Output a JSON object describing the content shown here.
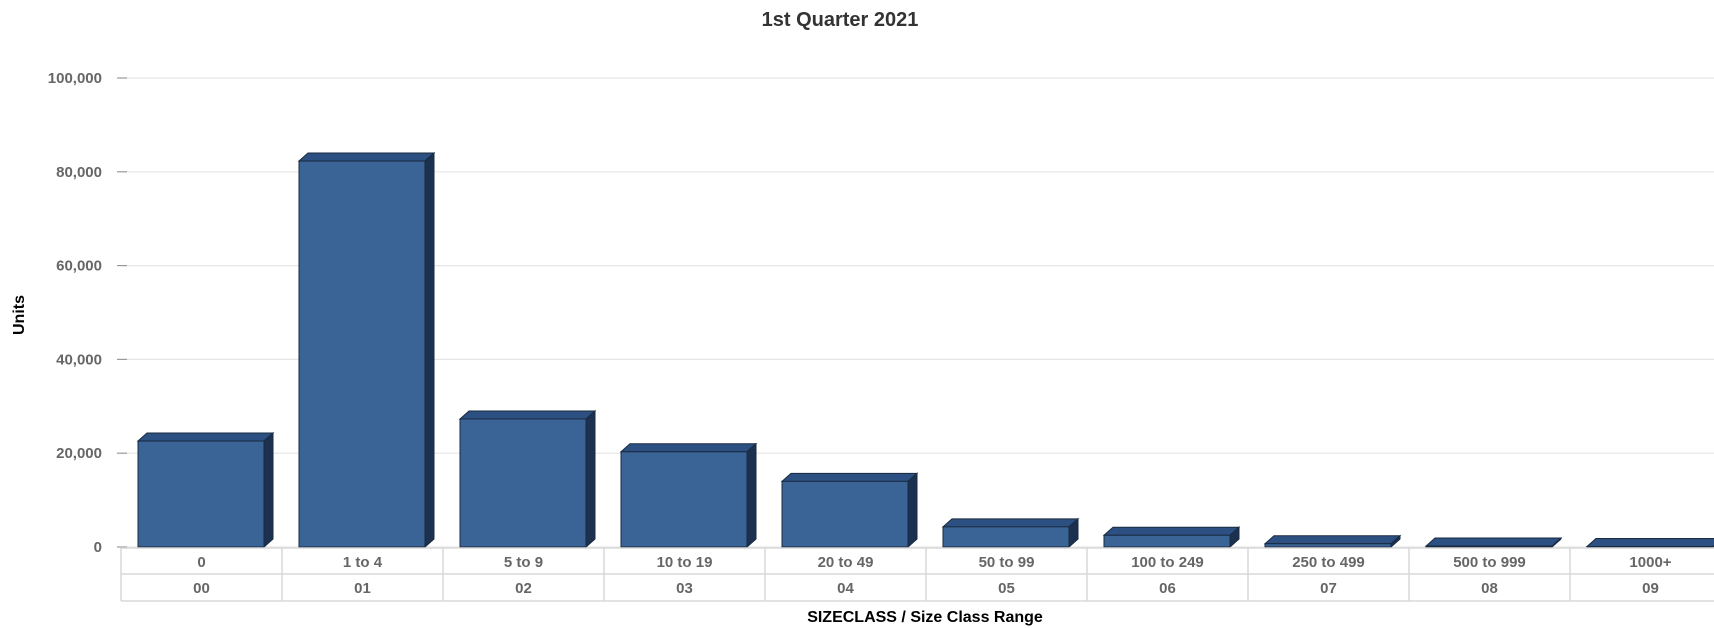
{
  "chart_data": {
    "type": "bar",
    "title": "1st Quarter 2021",
    "ylabel": "Units",
    "xlabel": "SIZECLASS / Size Class Range",
    "ylim": [
      0,
      100000
    ],
    "yticks": [
      0,
      20000,
      40000,
      60000,
      80000,
      100000
    ],
    "ytick_labels": [
      "0",
      "20,000",
      "40,000",
      "60,000",
      "80,000",
      "100,000"
    ],
    "categories": [
      "0",
      "1 to 4",
      "5 to 9",
      "10 to 19",
      "20 to 49",
      "50 to 99",
      "100 to 249",
      "250 to 499",
      "500 to 999",
      "1000+"
    ],
    "category_codes": [
      "00",
      "01",
      "02",
      "03",
      "04",
      "05",
      "06",
      "07",
      "08",
      "09"
    ],
    "values": [
      22600,
      82300,
      27300,
      20300,
      14000,
      4300,
      2500,
      700,
      200,
      100
    ],
    "grid": true,
    "legend": "none",
    "colors": {
      "bar": "#3a6496",
      "bar_top": "#2c5082",
      "bar_side": "#1c3050",
      "grid": "#e6e6e6",
      "table": "#d8d8d8"
    }
  }
}
